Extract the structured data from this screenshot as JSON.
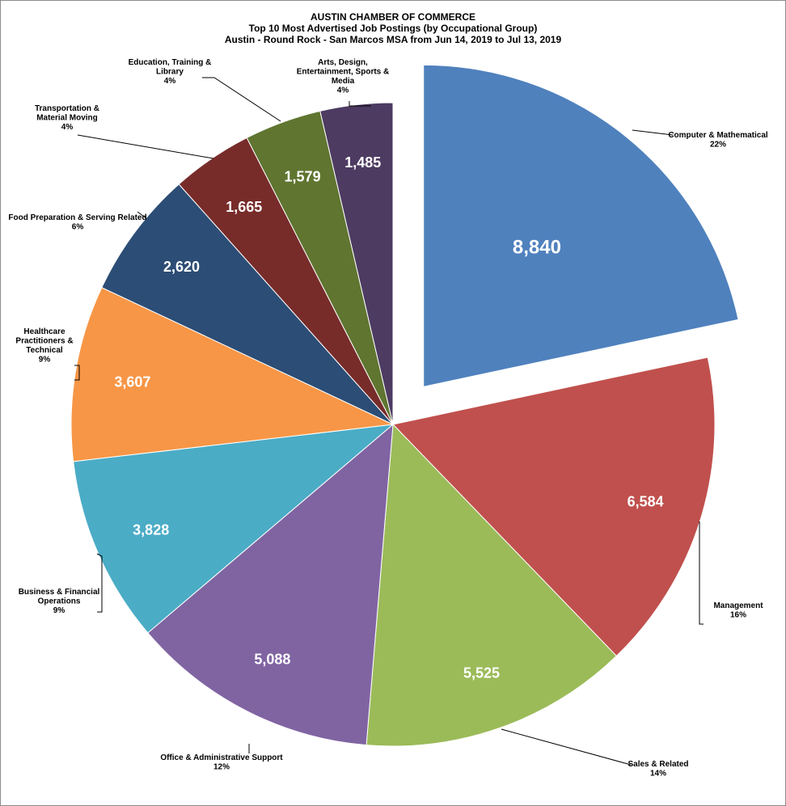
{
  "title": {
    "line1": "AUSTIN CHAMBER  OF COMMERCE",
    "line2": "Top 10 Most Advertised  Job Postings (by Occupational Group)",
    "line3": "Austin  - Round  Rock - San Marcos MSA from Jun 14, 2019 to Jul 13, 2019"
  },
  "chart_data": {
    "type": "pie",
    "title": "Top 10 Most Advertised  Job Postings (by Occupational Group)",
    "start_angle_deg": 0,
    "direction": "clockwise",
    "exploded_slice": "Computer & Mathematical",
    "slices": [
      {
        "name": "Computer & Mathematical",
        "value": 8840,
        "value_label": "8,840",
        "percent_label": "22%",
        "color": "#4F81BD",
        "label_lines": [
          "Computer & Mathematical"
        ]
      },
      {
        "name": "Management",
        "value": 6584,
        "value_label": "6,584",
        "percent_label": "16%",
        "color": "#C0504D",
        "label_lines": [
          "Management"
        ]
      },
      {
        "name": "Sales & Related",
        "value": 5525,
        "value_label": "5,525",
        "percent_label": "14%",
        "color": "#9BBB59",
        "label_lines": [
          "Sales & Related"
        ]
      },
      {
        "name": "Office & Administrative Support",
        "value": 5088,
        "value_label": "5,088",
        "percent_label": "12%",
        "color": "#8064A2",
        "label_lines": [
          "Office & Administrative Support"
        ]
      },
      {
        "name": "Business & Financial Operations",
        "value": 3828,
        "value_label": "3,828",
        "percent_label": "9%",
        "color": "#4BACC6",
        "label_lines": [
          "Business & Financial",
          "Operations"
        ]
      },
      {
        "name": "Healthcare Practitioners & Technical",
        "value": 3607,
        "value_label": "3,607",
        "percent_label": "9%",
        "color": "#F79646",
        "label_lines": [
          "Healthcare",
          "Practitioners &",
          "Technical"
        ]
      },
      {
        "name": "Food Preparation & Serving Related",
        "value": 2620,
        "value_label": "2,620",
        "percent_label": "6%",
        "color": "#2C4D75",
        "label_lines": [
          "Food Preparation & Serving Related"
        ]
      },
      {
        "name": "Transportation & Material Moving",
        "value": 1665,
        "value_label": "1,665",
        "percent_label": "4%",
        "color": "#772C2A",
        "label_lines": [
          "Transportation &",
          "Material Moving"
        ]
      },
      {
        "name": "Education, Training & Library",
        "value": 1579,
        "value_label": "1,579",
        "percent_label": "4%",
        "color": "#5F7530",
        "label_lines": [
          "Education, Training &",
          "Library"
        ]
      },
      {
        "name": "Arts, Design, Entertainment, Sports & Media",
        "value": 1485,
        "value_label": "1,485",
        "percent_label": "4%",
        "color": "#4D3B62",
        "label_lines": [
          "Arts, Design,",
          "Entertainment, Sports &",
          "Media"
        ]
      }
    ]
  }
}
